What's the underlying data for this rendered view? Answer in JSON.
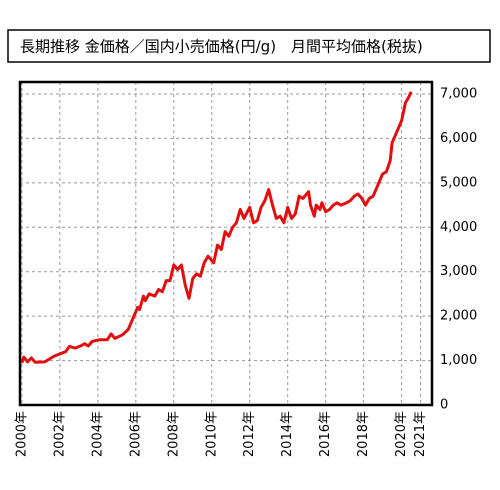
{
  "chart_data": {
    "type": "line",
    "title": "長期推移 金価格／国内小売価格(円/g)　月間平均価格(税抜)",
    "x": [
      2000.0,
      2000.1,
      2000.3,
      2000.5,
      2000.7,
      2001.2,
      2001.7,
      2002.3,
      2002.5,
      2002.8,
      2003.1,
      2003.3,
      2003.5,
      2003.7,
      2003.9,
      2004.1,
      2004.5,
      2004.7,
      2004.9,
      2005.3,
      2005.6,
      2005.8,
      2006.1,
      2006.2,
      2006.4,
      2006.5,
      2006.7,
      2007.0,
      2007.2,
      2007.4,
      2007.6,
      2007.8,
      2008.0,
      2008.2,
      2008.4,
      2008.6,
      2008.8,
      2009.0,
      2009.2,
      2009.4,
      2009.6,
      2009.8,
      2010.1,
      2010.3,
      2010.5,
      2010.7,
      2010.9,
      2011.1,
      2011.3,
      2011.5,
      2011.7,
      2012.0,
      2012.2,
      2012.4,
      2012.6,
      2012.8,
      2013.0,
      2013.2,
      2013.4,
      2013.6,
      2013.8,
      2014.0,
      2014.2,
      2014.4,
      2014.6,
      2014.8,
      2015.1,
      2015.2,
      2015.4,
      2015.5,
      2015.7,
      2015.8,
      2016.0,
      2016.2,
      2016.4,
      2016.6,
      2016.8,
      2017.1,
      2017.3,
      2017.5,
      2017.7,
      2017.9,
      2018.1,
      2018.3,
      2018.5,
      2018.7,
      2019.0,
      2019.2,
      2019.4,
      2019.5,
      2019.7,
      2020.0,
      2020.2,
      2020.4,
      2020.5
    ],
    "series": [
      {
        "name": "金価格",
        "color": "#e01010",
        "values": [
          950,
          1080,
          970,
          1060,
          960,
          970,
          1100,
          1200,
          1320,
          1280,
          1330,
          1380,
          1330,
          1430,
          1450,
          1470,
          1470,
          1600,
          1500,
          1580,
          1700,
          1900,
          2200,
          2150,
          2450,
          2350,
          2500,
          2450,
          2600,
          2550,
          2800,
          2800,
          3150,
          3050,
          3150,
          2700,
          2400,
          2850,
          2950,
          2900,
          3200,
          3350,
          3200,
          3600,
          3500,
          3900,
          3800,
          4000,
          4100,
          4400,
          4200,
          4450,
          4100,
          4150,
          4450,
          4600,
          4850,
          4500,
          4200,
          4250,
          4100,
          4450,
          4200,
          4300,
          4700,
          4650,
          4800,
          4500,
          4250,
          4500,
          4400,
          4550,
          4350,
          4400,
          4500,
          4550,
          4500,
          4550,
          4600,
          4700,
          4750,
          4650,
          4500,
          4650,
          4700,
          4900,
          5200,
          5250,
          5500,
          5900,
          6100,
          6400,
          6800,
          6950,
          7050
        ]
      }
    ],
    "xlim": [
      1999.9,
      2021.6
    ],
    "xticks": [
      {
        "value": 2000,
        "label": "2000年"
      },
      {
        "value": 2002,
        "label": "2002年"
      },
      {
        "value": 2004,
        "label": "2004年"
      },
      {
        "value": 2006,
        "label": "2006年"
      },
      {
        "value": 2008,
        "label": "2008年"
      },
      {
        "value": 2010,
        "label": "2010年"
      },
      {
        "value": 2012,
        "label": "2012年"
      },
      {
        "value": 2014,
        "label": "2014年"
      },
      {
        "value": 2016,
        "label": "2016年"
      },
      {
        "value": 2018,
        "label": "2018年"
      },
      {
        "value": 2020,
        "label": "2020年"
      },
      {
        "value": 2021,
        "label": "2021年"
      }
    ],
    "ylim": [
      0,
      7270
    ],
    "yticks": [
      0,
      {
        "value": 1000,
        "label": "1,000"
      },
      {
        "value": 2000,
        "label": "2,000"
      },
      {
        "value": 3000,
        "label": "3,000"
      },
      {
        "value": 4000,
        "label": "4,000"
      },
      {
        "value": 5000,
        "label": "5,000"
      },
      {
        "value": 6000,
        "label": "6,000"
      },
      {
        "value": 7000,
        "label": "7,000"
      }
    ],
    "grid": true
  }
}
